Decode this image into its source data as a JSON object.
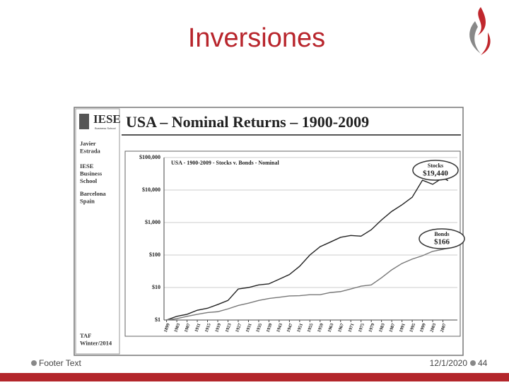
{
  "slide": {
    "title": "Inversiones",
    "footer": "Footer Text",
    "date": "12/1/2020",
    "page": "44"
  },
  "panel": {
    "logo": "IESE",
    "logo_sub": "Business School",
    "author": [
      "Javier",
      "Estrada"
    ],
    "school": [
      "IESE",
      "Business",
      "School"
    ],
    "city": [
      "Barcelona",
      "Spain"
    ],
    "course": [
      "TAF",
      "Winter/2014"
    ]
  },
  "chart_data": {
    "type": "line",
    "title": "USA – Nominal Returns – 1900-2009",
    "subtitle": "USA - 1900-2009 - Stocks v. Bonds - Nominal",
    "log_y": true,
    "grid": true,
    "x": [
      1899,
      1903,
      1907,
      1911,
      1915,
      1919,
      1923,
      1927,
      1931,
      1935,
      1939,
      1943,
      1947,
      1951,
      1955,
      1959,
      1963,
      1967,
      1971,
      1975,
      1979,
      1983,
      1987,
      1991,
      1995,
      1999,
      2003,
      2007,
      2009
    ],
    "series": [
      {
        "name": "Stocks",
        "color": "#222222",
        "end_label": "$19,440",
        "values": [
          1,
          1.3,
          1.5,
          2,
          2.3,
          3,
          4,
          9,
          10,
          12,
          13,
          18,
          25,
          45,
          100,
          180,
          250,
          350,
          400,
          380,
          600,
          1200,
          2200,
          3500,
          6000,
          20000,
          15000,
          24000,
          19440
        ]
      },
      {
        "name": "Bonds",
        "color": "#777777",
        "end_label": "$166",
        "values": [
          1,
          1.1,
          1.3,
          1.5,
          1.7,
          1.8,
          2.2,
          2.8,
          3.3,
          4,
          4.6,
          5,
          5.5,
          5.6,
          6,
          6,
          7,
          7.5,
          9,
          11,
          12,
          20,
          35,
          55,
          75,
          95,
          130,
          150,
          166
        ]
      }
    ],
    "xlim": [
      1898,
      2011
    ],
    "xticks": [
      1899,
      1903,
      1907,
      1911,
      1915,
      1919,
      1923,
      1927,
      1931,
      1935,
      1939,
      1943,
      1947,
      1951,
      1955,
      1959,
      1963,
      1967,
      1971,
      1975,
      1979,
      1983,
      1987,
      1991,
      1995,
      1999,
      2003,
      2007
    ],
    "ylim": [
      1,
      100000
    ],
    "yticks": [
      {
        "value": 1,
        "label": "$1"
      },
      {
        "value": 10,
        "label": "$10"
      },
      {
        "value": 100,
        "label": "$100"
      },
      {
        "value": 1000,
        "label": "$1,000"
      },
      {
        "value": 10000,
        "label": "$10,000"
      },
      {
        "value": 100000,
        "label": "$100,000"
      }
    ]
  }
}
